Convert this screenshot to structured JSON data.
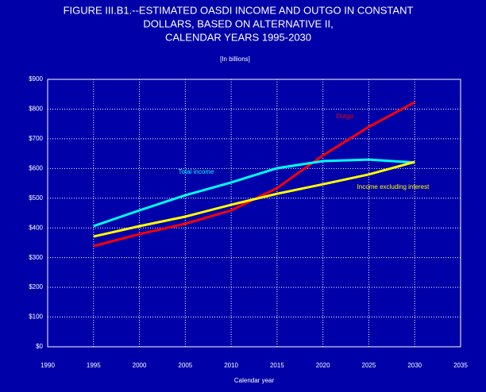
{
  "chart_data": {
    "type": "line",
    "title": [
      "FIGURE III.B1.--ESTIMATED OASDI INCOME AND OUTGO  IN CONSTANT",
      "DOLLARS, BASED ON ALTERNATIVE II,",
      "CALENDAR YEARS 1995-2030"
    ],
    "subtitle": "[In billions]",
    "x_label": "Calendar year",
    "x": [
      1995,
      2000,
      2005,
      2010,
      2015,
      2020,
      2025,
      2030
    ],
    "series": [
      {
        "name": "Outgo",
        "color": "#ff0000",
        "values": [
          339,
          379,
          414,
          459,
          534,
          644,
          740,
          823
        ]
      },
      {
        "name": "Total income",
        "color": "#00ffff",
        "values": [
          406,
          459,
          510,
          553,
          601,
          625,
          630,
          620
        ]
      },
      {
        "name": "Income excluding interest",
        "color": "#ffff00",
        "values": [
          371,
          406,
          438,
          478,
          515,
          547,
          580,
          622
        ]
      }
    ],
    "xlim": [
      1990,
      2035
    ],
    "xticks": [
      1990,
      1995,
      2000,
      2005,
      2010,
      2015,
      2020,
      2025,
      2030,
      2035
    ],
    "ylim": [
      0,
      900
    ],
    "yticks": [
      {
        "value": 0,
        "label": "$0"
      },
      {
        "value": 100,
        "label": "$100"
      },
      {
        "value": 200,
        "label": "$200"
      },
      {
        "value": 300,
        "label": "$300"
      },
      {
        "value": 400,
        "label": "$400"
      },
      {
        "value": 500,
        "label": "$500"
      },
      {
        "value": 600,
        "label": "$600"
      },
      {
        "value": 700,
        "label": "$700"
      },
      {
        "value": 800,
        "label": "$800"
      },
      {
        "value": 900,
        "label": "$900"
      }
    ],
    "grid": true
  }
}
